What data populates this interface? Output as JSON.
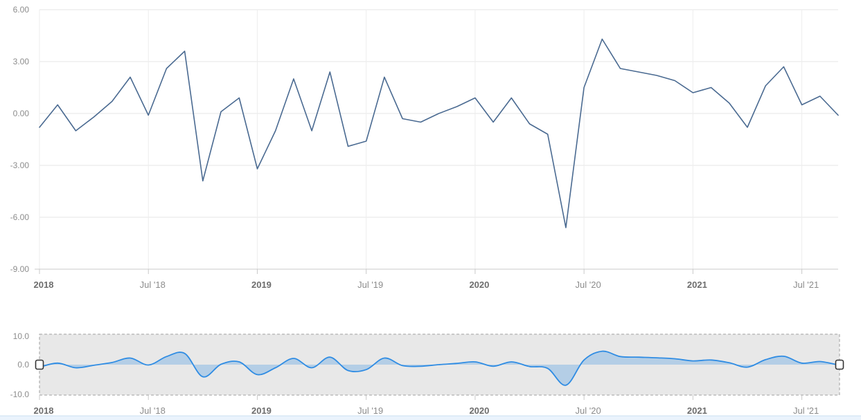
{
  "page": {
    "background": "#ffffff"
  },
  "colors": {
    "main_line": "#4a6a91",
    "grid_horizontal": "#e6e6e6",
    "grid_vertical": "#ededed",
    "axis_line": "#c9c9c9",
    "tick": "#c9c9c9",
    "label_grey": "#8c8c8c",
    "label_bold_grey": "#6d6d6d",
    "navigator_line": "#2f8ce3",
    "navigator_fill": "rgba(47,140,227,0.28)",
    "navigator_background": "#e8e8e8",
    "navigator_border": "#9f9f9f",
    "handle_fill": "#ffffff",
    "handle_border": "#333333",
    "bottom_strip_fill": "#eaf3fc",
    "bottom_strip_border": "#cbdff2"
  },
  "chart_data": [
    {
      "id": "main-chart",
      "type": "line",
      "title": "",
      "xlabel": "",
      "ylabel": "",
      "legend": "none",
      "grid": "on",
      "ylim": [
        -9,
        6
      ],
      "y_ticks": [
        {
          "value": 6,
          "label": "6.00"
        },
        {
          "value": 3,
          "label": "3.00"
        },
        {
          "value": 0,
          "label": "0.00"
        },
        {
          "value": -3,
          "label": "-3.00"
        },
        {
          "value": -6,
          "label": "-6.00"
        },
        {
          "value": -9,
          "label": "-9.00"
        }
      ],
      "x_tick_labels": [
        {
          "label": "2018",
          "bold": true,
          "month_index": 0
        },
        {
          "label": "Jul '18",
          "bold": false,
          "month_index": 6
        },
        {
          "label": "2019",
          "bold": true,
          "month_index": 12
        },
        {
          "label": "Jul '19",
          "bold": false,
          "month_index": 18
        },
        {
          "label": "2020",
          "bold": true,
          "month_index": 24
        },
        {
          "label": "Jul '20",
          "bold": false,
          "month_index": 30
        },
        {
          "label": "2021",
          "bold": true,
          "month_index": 36
        },
        {
          "label": "Jul '21",
          "bold": false,
          "month_index": 42
        }
      ],
      "categories": [
        "Jan 2018",
        "Feb 2018",
        "Mar 2018",
        "Apr 2018",
        "May 2018",
        "Jun 2018",
        "Jul 2018",
        "Aug 2018",
        "Sep 2018",
        "Oct 2018",
        "Nov 2018",
        "Dec 2018",
        "Jan 2019",
        "Feb 2019",
        "Mar 2019",
        "Apr 2019",
        "May 2019",
        "Jun 2019",
        "Jul 2019",
        "Aug 2019",
        "Sep 2019",
        "Oct 2019",
        "Nov 2019",
        "Dec 2019",
        "Jan 2020",
        "Feb 2020",
        "Mar 2020",
        "Apr 2020",
        "May 2020",
        "Jun 2020",
        "Jul 2020",
        "Aug 2020",
        "Sep 2020",
        "Oct 2020",
        "Nov 2020",
        "Dec 2020",
        "Jan 2021",
        "Feb 2021",
        "Mar 2021",
        "Apr 2021",
        "May 2021",
        "Jun 2021",
        "Jul 2021",
        "Aug 2021",
        "Sep 2021"
      ],
      "series": [
        {
          "name": "monthly-values",
          "color": "#4a6a91",
          "values": [
            -0.8,
            0.5,
            -1.0,
            -0.2,
            0.7,
            2.1,
            -0.1,
            2.6,
            3.6,
            -3.9,
            0.1,
            0.9,
            -3.2,
            -1.0,
            2.0,
            -1.0,
            2.4,
            -1.9,
            -1.6,
            2.1,
            -0.3,
            -0.5,
            0.0,
            0.4,
            0.9,
            -0.5,
            0.9,
            -0.6,
            -1.2,
            -6.6,
            1.5,
            4.3,
            2.6,
            2.4,
            2.2,
            1.9,
            1.2,
            1.5,
            0.6,
            -0.8,
            1.6,
            2.7,
            0.5,
            1.0,
            -0.1
          ]
        }
      ]
    },
    {
      "id": "navigator",
      "type": "area",
      "subtype": "areaspline",
      "ylim": [
        -10,
        10
      ],
      "threshold": 0,
      "y_ticks": [
        {
          "value": 10,
          "label": "10.0"
        },
        {
          "value": 0,
          "label": "0.0"
        },
        {
          "value": -10,
          "label": "-10.0"
        }
      ],
      "x_tick_labels": [
        {
          "label": "2018",
          "bold": true,
          "month_index": 0
        },
        {
          "label": "Jul '18",
          "bold": false,
          "month_index": 6
        },
        {
          "label": "2019",
          "bold": true,
          "month_index": 12
        },
        {
          "label": "Jul '19",
          "bold": false,
          "month_index": 18
        },
        {
          "label": "2020",
          "bold": true,
          "month_index": 24
        },
        {
          "label": "Jul '20",
          "bold": false,
          "month_index": 30
        },
        {
          "label": "2021",
          "bold": true,
          "month_index": 36
        },
        {
          "label": "Jul '21",
          "bold": false,
          "month_index": 42
        }
      ],
      "categories": [
        "Jan 2018",
        "Feb 2018",
        "Mar 2018",
        "Apr 2018",
        "May 2018",
        "Jun 2018",
        "Jul 2018",
        "Aug 2018",
        "Sep 2018",
        "Oct 2018",
        "Nov 2018",
        "Dec 2018",
        "Jan 2019",
        "Feb 2019",
        "Mar 2019",
        "Apr 2019",
        "May 2019",
        "Jun 2019",
        "Jul 2019",
        "Aug 2019",
        "Sep 2019",
        "Oct 2019",
        "Nov 2019",
        "Dec 2019",
        "Jan 2020",
        "Feb 2020",
        "Mar 2020",
        "Apr 2020",
        "May 2020",
        "Jun 2020",
        "Jul 2020",
        "Aug 2020",
        "Sep 2020",
        "Oct 2020",
        "Nov 2020",
        "Dec 2020",
        "Jan 2021",
        "Feb 2021",
        "Mar 2021",
        "Apr 2021",
        "May 2021",
        "Jun 2021",
        "Jul 2021",
        "Aug 2021",
        "Sep 2021"
      ],
      "series": [
        {
          "name": "monthly-values-smoothed",
          "line_color": "#2f8ce3",
          "fill_color": "rgba(47,140,227,0.28)",
          "values": [
            -0.8,
            0.5,
            -1.0,
            -0.2,
            0.7,
            2.1,
            -0.1,
            2.6,
            3.6,
            -3.9,
            0.1,
            0.9,
            -3.2,
            -1.0,
            2.0,
            -1.0,
            2.4,
            -1.9,
            -1.6,
            2.1,
            -0.3,
            -0.5,
            0.0,
            0.4,
            0.9,
            -0.5,
            0.9,
            -0.6,
            -1.2,
            -6.6,
            1.5,
            4.3,
            2.6,
            2.4,
            2.2,
            1.9,
            1.2,
            1.5,
            0.6,
            -0.8,
            1.6,
            2.7,
            0.5,
            1.0,
            -0.1
          ]
        }
      ],
      "range_selected": {
        "from": "Jan 2018",
        "to": "Sep 2021"
      }
    }
  ]
}
